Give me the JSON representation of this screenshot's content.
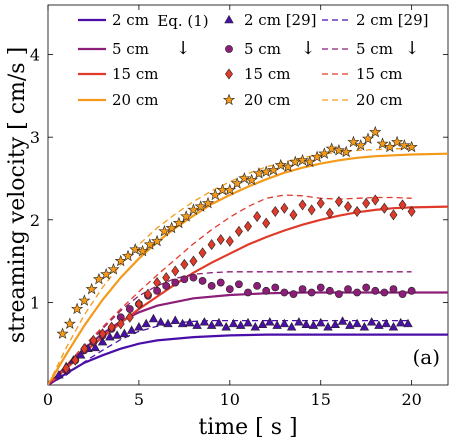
{
  "chart_data": {
    "type": "line",
    "xlabel": "time [ s ]",
    "ylabel": "streaming velocity [ cm/s ]",
    "xlim": [
      0,
      22
    ],
    "ylim": [
      0,
      4.6
    ],
    "x_ticks": [
      0,
      5,
      10,
      15,
      20
    ],
    "y_ticks": [
      1,
      2,
      3,
      4
    ],
    "annotation": "(a)",
    "grid": false,
    "legend": {
      "placement": "top",
      "column_headers": [
        "",
        "Eq. (1)",
        "",
        "[29]"
      ],
      "arrows": [
        "↓",
        "↓",
        "↓"
      ]
    },
    "colors": {
      "2cm": "#4b0ea8",
      "5cm": "#8c1d78",
      "15cm": "#e03a2a",
      "20cm": "#f39a1a"
    },
    "series": [
      {
        "name": "2 cm",
        "kind": "model",
        "color_key": "2cm",
        "x": [
          0,
          1,
          2,
          3,
          4,
          5,
          6,
          8,
          10,
          12,
          14,
          16,
          18,
          20,
          22
        ],
        "y": [
          0,
          0.14,
          0.27,
          0.36,
          0.44,
          0.5,
          0.54,
          0.58,
          0.6,
          0.61,
          0.61,
          0.61,
          0.61,
          0.61,
          0.61
        ]
      },
      {
        "name": "5 cm",
        "kind": "model",
        "color_key": "5cm",
        "x": [
          0,
          1,
          2,
          3,
          4,
          5,
          6,
          8,
          10,
          12,
          14,
          16,
          18,
          20,
          22
        ],
        "y": [
          0,
          0.23,
          0.44,
          0.62,
          0.77,
          0.88,
          0.96,
          1.05,
          1.09,
          1.11,
          1.12,
          1.12,
          1.12,
          1.12,
          1.12
        ]
      },
      {
        "name": "15 cm",
        "kind": "model",
        "color_key": "15cm",
        "x": [
          0,
          1,
          2,
          3,
          4,
          5,
          6,
          7,
          8,
          9,
          10,
          11,
          12,
          13,
          14,
          15,
          16,
          17,
          18,
          19,
          20,
          22
        ],
        "y": [
          0,
          0.2,
          0.4,
          0.58,
          0.75,
          0.92,
          1.07,
          1.22,
          1.36,
          1.48,
          1.59,
          1.7,
          1.79,
          1.87,
          1.94,
          2.0,
          2.05,
          2.09,
          2.12,
          2.14,
          2.15,
          2.16
        ]
      },
      {
        "name": "20 cm",
        "kind": "model",
        "color_key": "20cm",
        "x": [
          0,
          1,
          2,
          3,
          4,
          5,
          6,
          7,
          8,
          9,
          10,
          11,
          12,
          13,
          14,
          15,
          16,
          17,
          18,
          19,
          20,
          22
        ],
        "y": [
          0,
          0.37,
          0.72,
          1.03,
          1.3,
          1.53,
          1.73,
          1.9,
          2.05,
          2.19,
          2.3,
          2.4,
          2.49,
          2.57,
          2.63,
          2.68,
          2.72,
          2.75,
          2.77,
          2.78,
          2.79,
          2.8
        ]
      },
      {
        "name": "2 cm [29]",
        "kind": "reference",
        "color_key": "2cm",
        "x": [
          0,
          1,
          2,
          3,
          4,
          5,
          6,
          7,
          8,
          9,
          10,
          12,
          14,
          16,
          18,
          20
        ],
        "y": [
          0,
          0.12,
          0.28,
          0.42,
          0.55,
          0.65,
          0.71,
          0.75,
          0.77,
          0.78,
          0.78,
          0.78,
          0.78,
          0.78,
          0.78,
          0.78
        ]
      },
      {
        "name": "5 cm [29]",
        "kind": "reference",
        "color_key": "5cm",
        "x": [
          0,
          1,
          2,
          3,
          4,
          5,
          6,
          7,
          8,
          9,
          10,
          12,
          14,
          16,
          18,
          20
        ],
        "y": [
          0,
          0.2,
          0.45,
          0.68,
          0.9,
          1.08,
          1.2,
          1.29,
          1.34,
          1.36,
          1.37,
          1.37,
          1.37,
          1.37,
          1.37,
          1.37
        ]
      },
      {
        "name": "15 cm [29]",
        "kind": "reference",
        "color_key": "15cm",
        "x": [
          0,
          1,
          2,
          3,
          4,
          5,
          6,
          7,
          8,
          9,
          10,
          11,
          12,
          13,
          14,
          15,
          16,
          17,
          18,
          19,
          20
        ],
        "y": [
          0,
          0.24,
          0.48,
          0.7,
          0.92,
          1.13,
          1.33,
          1.52,
          1.71,
          1.88,
          2.03,
          2.16,
          2.26,
          2.3,
          2.29,
          2.26,
          2.25,
          2.26,
          2.27,
          2.27,
          2.26
        ]
      },
      {
        "name": "20 cm [29]",
        "kind": "reference",
        "color_key": "20cm",
        "x": [
          0,
          1,
          2,
          3,
          4,
          5,
          6,
          7,
          8,
          9,
          10,
          11,
          12,
          13,
          14,
          15,
          16,
          17,
          18,
          19,
          20
        ],
        "y": [
          0,
          0.45,
          0.85,
          1.18,
          1.46,
          1.7,
          1.9,
          2.07,
          2.22,
          2.35,
          2.46,
          2.56,
          2.64,
          2.7,
          2.75,
          2.79,
          2.82,
          2.84,
          2.85,
          2.86,
          2.86
        ]
      },
      {
        "name": "2 cm",
        "kind": "measured",
        "marker": "triangle",
        "color_key": "2cm",
        "x": [
          0.6,
          1.0,
          1.4,
          1.8,
          2.2,
          2.6,
          3.0,
          3.4,
          3.8,
          4.2,
          4.6,
          5.0,
          5.4,
          5.8,
          6.2,
          6.6,
          7.0,
          7.4,
          7.8,
          8.2,
          8.6,
          9.0,
          9.4,
          9.8,
          10.2,
          10.6,
          11.0,
          11.4,
          11.8,
          12.2,
          12.6,
          13.0,
          13.4,
          13.8,
          14.2,
          14.6,
          15.0,
          15.4,
          15.8,
          16.2,
          16.6,
          17.0,
          17.4,
          17.8,
          18.2,
          18.6,
          19.0,
          19.4,
          19.8
        ],
        "y": [
          0.12,
          0.22,
          0.3,
          0.36,
          0.44,
          0.45,
          0.52,
          0.58,
          0.6,
          0.62,
          0.66,
          0.7,
          0.74,
          0.8,
          0.76,
          0.74,
          0.78,
          0.74,
          0.75,
          0.72,
          0.76,
          0.72,
          0.75,
          0.7,
          0.74,
          0.72,
          0.75,
          0.7,
          0.73,
          0.76,
          0.72,
          0.74,
          0.7,
          0.76,
          0.73,
          0.72,
          0.75,
          0.7,
          0.73,
          0.77,
          0.72,
          0.74,
          0.7,
          0.76,
          0.72,
          0.74,
          0.7,
          0.75,
          0.74
        ]
      },
      {
        "name": "5 cm",
        "kind": "measured",
        "marker": "circle",
        "color_key": "5cm",
        "x": [
          1.0,
          1.5,
          2.0,
          2.5,
          3.0,
          3.5,
          4.0,
          4.5,
          5.0,
          5.5,
          6.0,
          6.5,
          7.0,
          7.5,
          8.0,
          8.5,
          9.0,
          9.5,
          10.0,
          10.5,
          11.0,
          11.5,
          12.0,
          12.5,
          13.0,
          13.5,
          14.0,
          14.5,
          15.0,
          15.5,
          16.0,
          16.5,
          17.0,
          17.5,
          18.0,
          18.5,
          19.0,
          19.5,
          20.0
        ],
        "y": [
          0.18,
          0.3,
          0.42,
          0.52,
          0.6,
          0.68,
          0.82,
          0.92,
          0.98,
          1.08,
          1.14,
          1.2,
          1.24,
          1.28,
          1.3,
          1.26,
          1.2,
          1.24,
          1.16,
          1.22,
          1.12,
          1.2,
          1.14,
          1.18,
          1.12,
          1.1,
          1.16,
          1.12,
          1.18,
          1.14,
          1.1,
          1.16,
          1.12,
          1.18,
          1.14,
          1.12,
          1.16,
          1.1,
          1.14
        ]
      },
      {
        "name": "15 cm",
        "kind": "measured",
        "marker": "diamond",
        "color_key": "15cm",
        "x": [
          1.0,
          1.5,
          2.0,
          2.5,
          3.0,
          3.5,
          4.0,
          4.5,
          5.0,
          5.5,
          6.0,
          6.5,
          7.0,
          7.5,
          8.0,
          8.5,
          9.0,
          9.5,
          10.0,
          10.5,
          11.0,
          11.5,
          12.0,
          12.5,
          13.0,
          13.5,
          14.0,
          14.5,
          15.0,
          15.5,
          16.0,
          16.5,
          17.0,
          17.5,
          18.0,
          18.5,
          19.0,
          19.5,
          20.0
        ],
        "y": [
          0.2,
          0.3,
          0.44,
          0.54,
          0.62,
          0.7,
          0.74,
          0.82,
          0.98,
          1.1,
          1.24,
          1.3,
          1.38,
          1.46,
          1.5,
          1.6,
          1.7,
          1.76,
          1.74,
          1.86,
          1.92,
          2.04,
          1.96,
          2.1,
          2.14,
          2.06,
          2.18,
          2.12,
          2.2,
          2.08,
          2.22,
          2.16,
          2.1,
          2.2,
          2.24,
          2.14,
          2.06,
          2.18,
          2.1
        ]
      },
      {
        "name": "20 cm",
        "kind": "measured",
        "marker": "star",
        "color_key": "20cm",
        "x": [
          0.8,
          1.2,
          1.6,
          2.0,
          2.4,
          2.8,
          3.2,
          3.6,
          4.0,
          4.4,
          4.8,
          5.2,
          5.6,
          6.0,
          6.4,
          6.8,
          7.2,
          7.6,
          8.0,
          8.4,
          8.8,
          9.2,
          9.6,
          10.0,
          10.4,
          10.8,
          11.2,
          11.6,
          12.0,
          12.4,
          12.8,
          13.2,
          13.6,
          14.0,
          14.4,
          14.8,
          15.2,
          15.6,
          16.0,
          16.4,
          16.8,
          17.2,
          17.6,
          18.0,
          18.4,
          18.8,
          19.2,
          19.6,
          20.0
        ],
        "y": [
          0.62,
          0.74,
          0.92,
          1.02,
          1.16,
          1.28,
          1.34,
          1.4,
          1.5,
          1.56,
          1.64,
          1.62,
          1.7,
          1.74,
          1.86,
          1.9,
          1.96,
          2.04,
          2.12,
          2.16,
          2.2,
          2.3,
          2.36,
          2.36,
          2.44,
          2.5,
          2.48,
          2.56,
          2.58,
          2.6,
          2.66,
          2.64,
          2.7,
          2.72,
          2.7,
          2.76,
          2.8,
          2.86,
          2.84,
          2.82,
          2.94,
          2.9,
          2.98,
          3.06,
          2.92,
          2.88,
          2.94,
          2.9,
          2.88
        ]
      }
    ],
    "legend_rows": [
      {
        "model_label": "2 cm",
        "measured_label": "2 cm [29]",
        "reference_label": "2 cm [29]",
        "color_key": "2cm",
        "marker": "triangle"
      },
      {
        "model_label": "5 cm",
        "measured_label": "5 cm",
        "reference_label": "5 cm",
        "color_key": "5cm",
        "marker": "circle"
      },
      {
        "model_label": "15 cm",
        "measured_label": "15 cm",
        "reference_label": "15 cm",
        "color_key": "15cm",
        "marker": "diamond"
      },
      {
        "model_label": "20 cm",
        "measured_label": "20 cm",
        "reference_label": "20 cm",
        "color_key": "20cm",
        "marker": "star"
      }
    ]
  }
}
